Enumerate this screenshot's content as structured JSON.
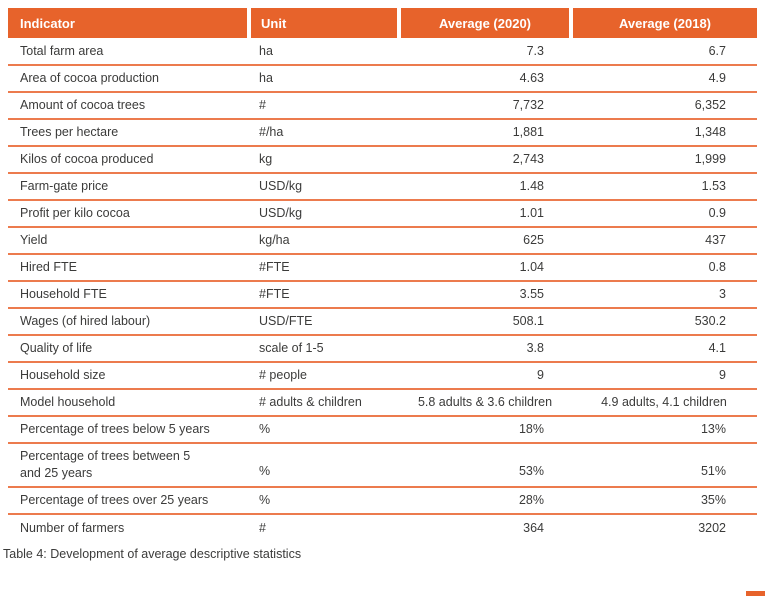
{
  "colors": {
    "header_bg": "#E7632B",
    "row_divider": "#EC7B4E",
    "body_text": "#3B3B3A",
    "header_text": "#FFFFFF",
    "corner_mark": "#E7632B"
  },
  "table": {
    "columns": [
      "Indicator",
      "Unit",
      "Average (2020)",
      "Average (2018)"
    ],
    "rows": [
      {
        "indicator": "Total farm area",
        "unit": "ha",
        "avg2020": "7.3",
        "avg2018": "6.7"
      },
      {
        "indicator": "Area of cocoa production",
        "unit": "ha",
        "avg2020": "4.63",
        "avg2018": "4.9"
      },
      {
        "indicator": "Amount of cocoa trees",
        "unit": "#",
        "avg2020": "7,732",
        "avg2018": "6,352"
      },
      {
        "indicator": "Trees per hectare",
        "unit": "#/ha",
        "avg2020": "1,881",
        "avg2018": "1,348"
      },
      {
        "indicator": "Kilos of cocoa produced",
        "unit": "kg",
        "avg2020": "2,743",
        "avg2018": "1,999"
      },
      {
        "indicator": "Farm-gate price",
        "unit": "USD/kg",
        "avg2020": "1.48",
        "avg2018": "1.53"
      },
      {
        "indicator": "Profit per kilo cocoa",
        "unit": "USD/kg",
        "avg2020": "1.01",
        "avg2018": "0.9"
      },
      {
        "indicator": "Yield",
        "unit": "kg/ha",
        "avg2020": "625",
        "avg2018": "437"
      },
      {
        "indicator": "Hired FTE",
        "unit": "#FTE",
        "avg2020": "1.04",
        "avg2018": "0.8"
      },
      {
        "indicator": "Household FTE",
        "unit": "#FTE",
        "avg2020": "3.55",
        "avg2018": "3"
      },
      {
        "indicator": "Wages (of hired labour)",
        "unit": "USD/FTE",
        "avg2020": "508.1",
        "avg2018": "530.2"
      },
      {
        "indicator": "Quality of life",
        "unit": "scale of 1-5",
        "avg2020": "3.8",
        "avg2018": "4.1"
      },
      {
        "indicator": "Household size",
        "unit": "# people",
        "avg2020": "9",
        "avg2018": "9"
      },
      {
        "indicator": "Model household",
        "unit": "# adults & children",
        "avg2020": "5.8 adults & 3.6 children",
        "avg2018": "4.9 adults, 4.1 children"
      },
      {
        "indicator": "Percentage of trees below 5 years",
        "unit": "%",
        "avg2020": "18%",
        "avg2018": "13%"
      },
      {
        "indicator": "Percentage of trees between 5\nand 25 years",
        "unit": "%",
        "avg2020": "53%",
        "avg2018": "51%"
      },
      {
        "indicator": "Percentage of trees over 25 years",
        "unit": "%",
        "avg2020": "28%",
        "avg2018": "35%"
      },
      {
        "indicator": "Number of farmers",
        "unit": "#",
        "avg2020": "364",
        "avg2018": "3202"
      }
    ],
    "caption": "Table 4: Development of average descriptive statistics"
  }
}
